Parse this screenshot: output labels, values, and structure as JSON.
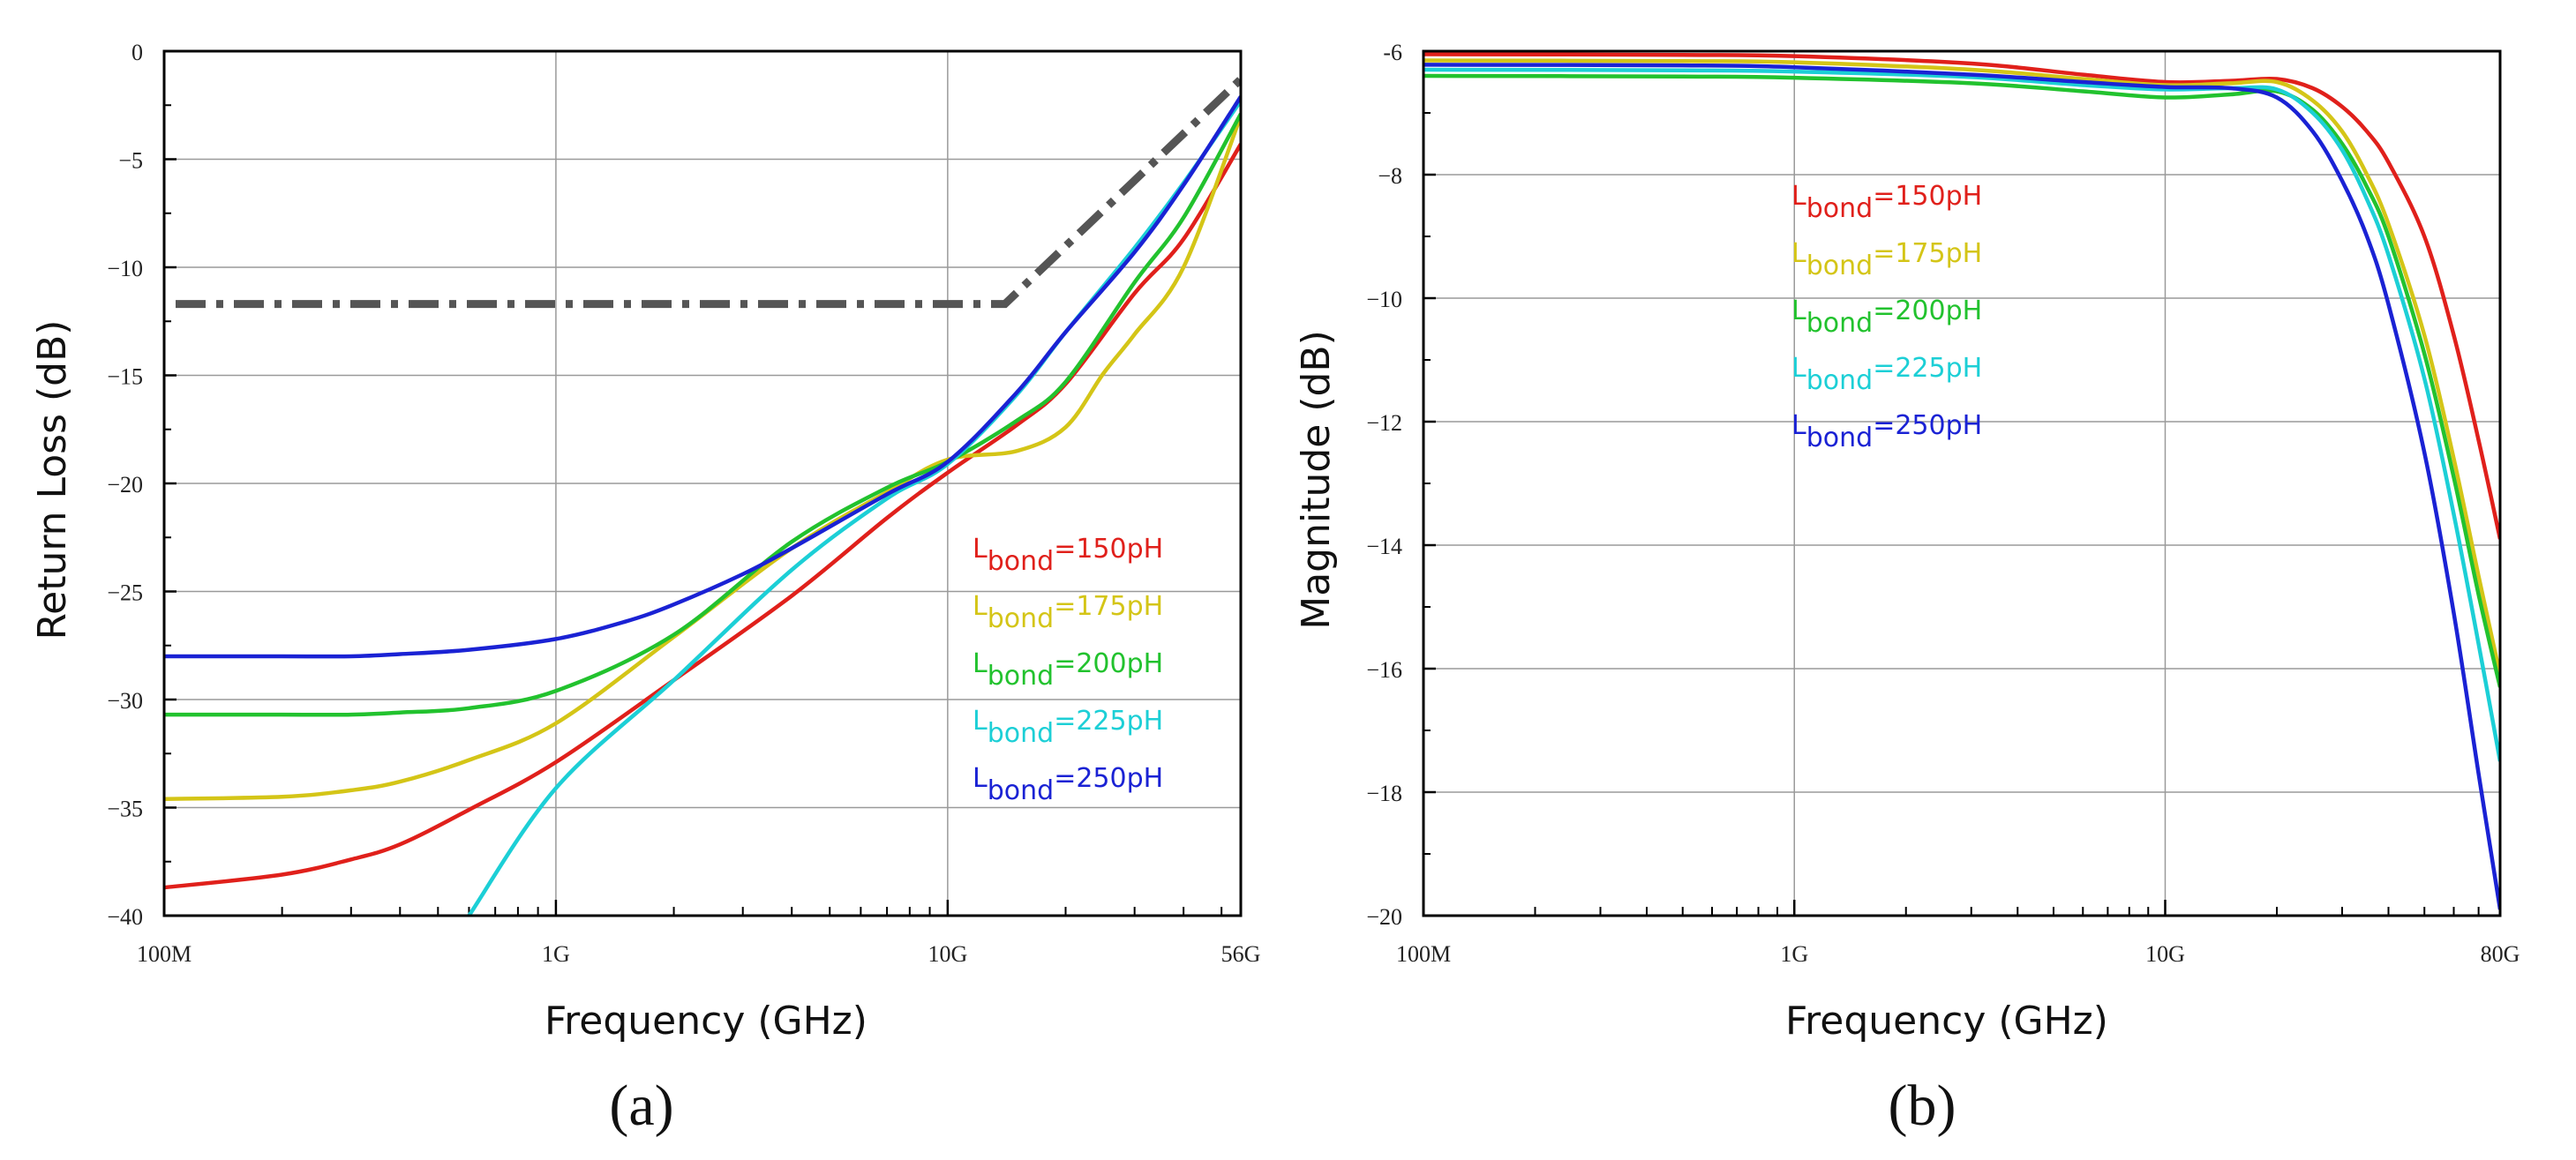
{
  "chart_data": [
    {
      "type": "line",
      "panel_label": "(a)",
      "xlabel": "Frequency (GHz)",
      "ylabel": "Return Loss (dB)",
      "xscale": "log",
      "xlim": [
        0.1,
        56
      ],
      "ylim": [
        -40,
        0
      ],
      "x_ticks": [
        0.1,
        1,
        10,
        56
      ],
      "x_tick_labels": [
        "100M",
        "1G",
        "10G",
        "56G"
      ],
      "y_ticks": [
        0,
        -5,
        -10,
        -15,
        -20,
        -25,
        -30,
        -35,
        -40
      ],
      "y_tick_labels": [
        "0",
        "−5",
        "−10",
        "−15",
        "−20",
        "−25",
        "−30",
        "−35",
        "−40"
      ],
      "grid": true,
      "legend_position": "right",
      "series": [
        {
          "name": "Lbond=150pH",
          "name_main": "L",
          "name_sub": "bond",
          "name_rest": "=150pH",
          "color": "#e0201b",
          "x": [
            0.1,
            0.2,
            0.3,
            0.4,
            0.6,
            1.0,
            2.0,
            4.0,
            7.0,
            10.0,
            15.0,
            20.0,
            30.0,
            40.0,
            56.0
          ],
          "y": [
            -38.7,
            -38.1,
            -37.4,
            -36.7,
            -35.1,
            -32.9,
            -29.1,
            -25.2,
            -21.6,
            -19.5,
            -17.3,
            -15.4,
            -11.2,
            -8.7,
            -4.3
          ]
        },
        {
          "name": "Lbond=175pH",
          "name_main": "L",
          "name_sub": "bond",
          "name_rest": "=175pH",
          "color": "#d4c517",
          "x": [
            0.1,
            0.2,
            0.3,
            0.4,
            0.6,
            1.0,
            2.0,
            4.0,
            7.0,
            10.0,
            15.0,
            20.0,
            25.0,
            30.0,
            40.0,
            56.0
          ],
          "y": [
            -34.6,
            -34.5,
            -34.2,
            -33.8,
            -32.8,
            -31.1,
            -27.1,
            -23.0,
            -20.4,
            -18.9,
            -18.5,
            -17.4,
            -14.9,
            -13.1,
            -10.0,
            -3.0
          ]
        },
        {
          "name": "Lbond=200pH",
          "name_main": "L",
          "name_sub": "bond",
          "name_rest": "=200pH",
          "color": "#22c22e",
          "x": [
            0.1,
            0.2,
            0.3,
            0.4,
            0.6,
            1.0,
            2.0,
            4.0,
            7.0,
            10.0,
            15.0,
            20.0,
            30.0,
            40.0,
            56.0
          ],
          "y": [
            -30.7,
            -30.7,
            -30.7,
            -30.6,
            -30.4,
            -29.6,
            -27.0,
            -22.7,
            -20.2,
            -19.0,
            -17.1,
            -15.3,
            -10.7,
            -7.7,
            -2.9
          ]
        },
        {
          "name": "Lbond=225pH",
          "name_main": "L",
          "name_sub": "bond",
          "name_rest": "=225pH",
          "color": "#1ccfd6",
          "x": [
            0.6,
            1.0,
            2.0,
            4.0,
            7.0,
            10.0,
            15.0,
            20.0,
            30.0,
            40.0,
            56.0
          ],
          "y": [
            -40.0,
            -34.1,
            -29.1,
            -24.0,
            -20.7,
            -19.1,
            -15.9,
            -13.0,
            -9.1,
            -6.1,
            -2.3
          ]
        },
        {
          "name": "Lbond=250pH",
          "name_main": "L",
          "name_sub": "bond",
          "name_rest": "=250pH",
          "color": "#1a22d4",
          "x": [
            0.1,
            0.2,
            0.3,
            0.4,
            0.6,
            1.0,
            1.5,
            2.0,
            3.0,
            4.0,
            7.0,
            10.0,
            15.0,
            20.0,
            30.0,
            40.0,
            56.0
          ],
          "y": [
            -28.0,
            -28.0,
            -28.0,
            -27.9,
            -27.7,
            -27.2,
            -26.4,
            -25.6,
            -24.2,
            -23.0,
            -20.5,
            -19.0,
            -15.8,
            -13.0,
            -9.3,
            -6.2,
            -2.1
          ]
        }
      ],
      "reference_line": {
        "style": "dash-dot",
        "color": "#555555",
        "x": [
          0.107,
          14.0,
          56.0
        ],
        "y": [
          -11.7,
          -11.7,
          -1.3
        ]
      }
    },
    {
      "type": "line",
      "panel_label": "(b)",
      "xlabel": "Frequency (GHz)",
      "ylabel": "Magnitude (dB)",
      "xscale": "log",
      "xlim": [
        0.1,
        80
      ],
      "ylim": [
        -20,
        -6
      ],
      "x_ticks": [
        0.1,
        1,
        10,
        80
      ],
      "x_tick_labels": [
        "100M",
        "1G",
        "10G",
        "80G"
      ],
      "y_ticks": [
        -6,
        -8,
        -10,
        -12,
        -14,
        -16,
        -18,
        -20
      ],
      "y_tick_labels": [
        "-6",
        "−8",
        "−10",
        "−12",
        "−14",
        "−16",
        "−18",
        "−20"
      ],
      "grid": true,
      "legend_position": "top-center",
      "series": [
        {
          "name": "Lbond=150pH",
          "name_main": "L",
          "name_sub": "bond",
          "name_rest": "=150pH",
          "color": "#e0201b",
          "x": [
            0.1,
            0.5,
            1.0,
            3.0,
            6.0,
            10.0,
            15.0,
            20.0,
            25.0,
            30.0,
            35.0,
            40.0,
            50.0,
            60.0,
            70.0,
            80.0
          ],
          "y": [
            -6.05,
            -6.06,
            -6.08,
            -6.2,
            -6.38,
            -6.5,
            -6.48,
            -6.45,
            -6.6,
            -6.9,
            -7.3,
            -7.8,
            -9.0,
            -10.6,
            -12.3,
            -13.9
          ]
        },
        {
          "name": "Lbond=175pH",
          "name_main": "L",
          "name_sub": "bond",
          "name_rest": "=175pH",
          "color": "#d4c517",
          "x": [
            0.1,
            0.5,
            1.0,
            3.0,
            6.0,
            10.0,
            15.0,
            20.0,
            25.0,
            30.0,
            35.0,
            40.0,
            50.0,
            60.0,
            70.0,
            80.0
          ],
          "y": [
            -6.15,
            -6.16,
            -6.18,
            -6.3,
            -6.45,
            -6.55,
            -6.52,
            -6.5,
            -6.8,
            -7.3,
            -8.0,
            -8.8,
            -10.6,
            -12.6,
            -14.5,
            -16.1
          ]
        },
        {
          "name": "Lbond=200pH",
          "name_main": "L",
          "name_sub": "bond",
          "name_rest": "=200pH",
          "color": "#22c22e",
          "x": [
            0.1,
            0.5,
            1.0,
            3.0,
            6.0,
            10.0,
            15.0,
            20.0,
            25.0,
            30.0,
            35.0,
            40.0,
            50.0,
            60.0,
            70.0,
            80.0
          ],
          "y": [
            -6.4,
            -6.41,
            -6.43,
            -6.52,
            -6.65,
            -6.75,
            -6.7,
            -6.65,
            -6.95,
            -7.5,
            -8.2,
            -9.0,
            -10.9,
            -12.9,
            -14.8,
            -16.3
          ]
        },
        {
          "name": "Lbond=225pH",
          "name_main": "L",
          "name_sub": "bond",
          "name_rest": "=225pH",
          "color": "#1ccfd6",
          "x": [
            0.1,
            0.5,
            1.0,
            3.0,
            6.0,
            10.0,
            15.0,
            20.0,
            25.0,
            30.0,
            35.0,
            40.0,
            50.0,
            60.0,
            70.0,
            80.0
          ],
          "y": [
            -6.3,
            -6.31,
            -6.33,
            -6.42,
            -6.55,
            -6.62,
            -6.6,
            -6.62,
            -7.0,
            -7.6,
            -8.4,
            -9.3,
            -11.3,
            -13.5,
            -15.6,
            -17.5
          ]
        },
        {
          "name": "Lbond=250pH",
          "name_main": "L",
          "name_sub": "bond",
          "name_rest": "=250pH",
          "color": "#1a22d4",
          "x": [
            0.1,
            0.5,
            1.0,
            3.0,
            6.0,
            10.0,
            15.0,
            20.0,
            25.0,
            30.0,
            35.0,
            40.0,
            50.0,
            60.0,
            70.0,
            80.0
          ],
          "y": [
            -6.22,
            -6.23,
            -6.26,
            -6.38,
            -6.5,
            -6.58,
            -6.6,
            -6.75,
            -7.3,
            -8.1,
            -9.0,
            -10.1,
            -12.5,
            -15.1,
            -17.7,
            -19.9
          ]
        }
      ]
    }
  ]
}
